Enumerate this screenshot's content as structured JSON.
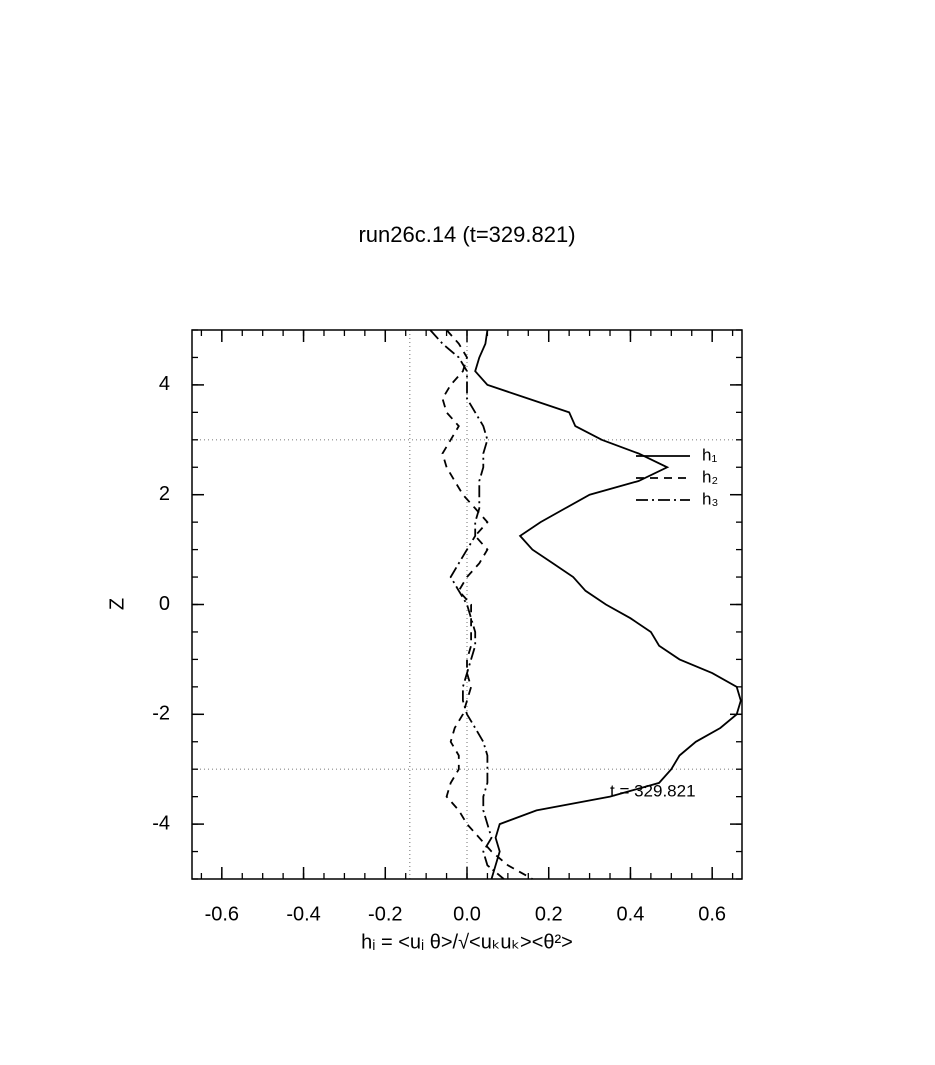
{
  "chart_data": {
    "type": "line",
    "orientation": "horizontal",
    "title": "run26c.14 (t=329.821)",
    "xlabel": "hᵢ = <uᵢ θ>/√<uₖuₖ><θ²>",
    "ylabel": "Z",
    "annotation": "t = 329.821",
    "xlim": [
      -0.673,
      0.673
    ],
    "ylim": [
      -5,
      5
    ],
    "xticks": [
      -0.6,
      -0.4,
      -0.2,
      {
        "value": 0,
        "label": "0.0"
      },
      0.2,
      0.4,
      0.6
    ],
    "yticks": [
      -4,
      -2,
      0,
      2,
      4
    ],
    "xminor": 0.05,
    "yminor": 0.5,
    "vlines": [
      -0.14,
      0
    ],
    "hlines": [
      3,
      -3
    ],
    "legend": "upper right",
    "y": [
      5,
      4.75,
      4.5,
      4.25,
      4,
      3.75,
      3.5,
      3.25,
      3,
      2.75,
      2.5,
      2.25,
      2,
      1.75,
      1.5,
      1.25,
      1,
      0.75,
      0.5,
      0.25,
      0,
      -0.25,
      -0.5,
      -0.75,
      -1,
      -1.25,
      -1.5,
      -1.75,
      -2,
      -2.25,
      -2.5,
      -2.75,
      -3,
      -3.25,
      -3.5,
      -3.75,
      -4,
      -4.25,
      -4.5,
      -4.75,
      -5
    ],
    "series": [
      {
        "name": "h₁",
        "color": "#000000",
        "dash": "solid",
        "values": [
          0.05,
          0.045,
          0.03,
          0.02,
          0.05,
          0.15,
          0.25,
          0.265,
          0.33,
          0.42,
          0.49,
          0.42,
          0.3,
          0.24,
          0.18,
          0.13,
          0.16,
          0.21,
          0.26,
          0.29,
          0.34,
          0.4,
          0.45,
          0.47,
          0.52,
          0.6,
          0.66,
          0.67,
          0.66,
          0.62,
          0.56,
          0.52,
          0.5,
          0.47,
          0.35,
          0.17,
          0.08,
          0.07,
          0.08,
          0.07,
          0.06
        ]
      },
      {
        "name": "h₂",
        "color": "#000000",
        "dash": "dashed",
        "values": [
          -0.05,
          -0.02,
          0,
          -0.01,
          -0.04,
          -0.06,
          -0.05,
          -0.02,
          -0.04,
          -0.06,
          -0.05,
          -0.03,
          -0.01,
          0.02,
          0.05,
          0.02,
          0.05,
          0.03,
          0,
          -0.02,
          0.01,
          0.01,
          0.01,
          0.01,
          0,
          0,
          0.01,
          0,
          -0.01,
          -0.03,
          -0.04,
          -0.02,
          -0.02,
          -0.04,
          -0.05,
          -0.02,
          0,
          0.03,
          0.06,
          0.1,
          0.16
        ]
      },
      {
        "name": "h₃",
        "color": "#000000",
        "dash": "dashdot",
        "values": [
          -0.09,
          -0.06,
          -0.02,
          0,
          0,
          0,
          0.02,
          0.04,
          0.05,
          0.04,
          0.04,
          0.03,
          0.03,
          0.03,
          0.02,
          0.02,
          0,
          -0.02,
          -0.04,
          -0.02,
          0,
          0.01,
          0.02,
          0.02,
          0.01,
          0,
          -0.01,
          -0.01,
          0,
          0.02,
          0.04,
          0.05,
          0.05,
          0.05,
          0.04,
          0.04,
          0.05,
          0.06,
          0.04,
          0.05,
          0.09
        ]
      }
    ]
  }
}
